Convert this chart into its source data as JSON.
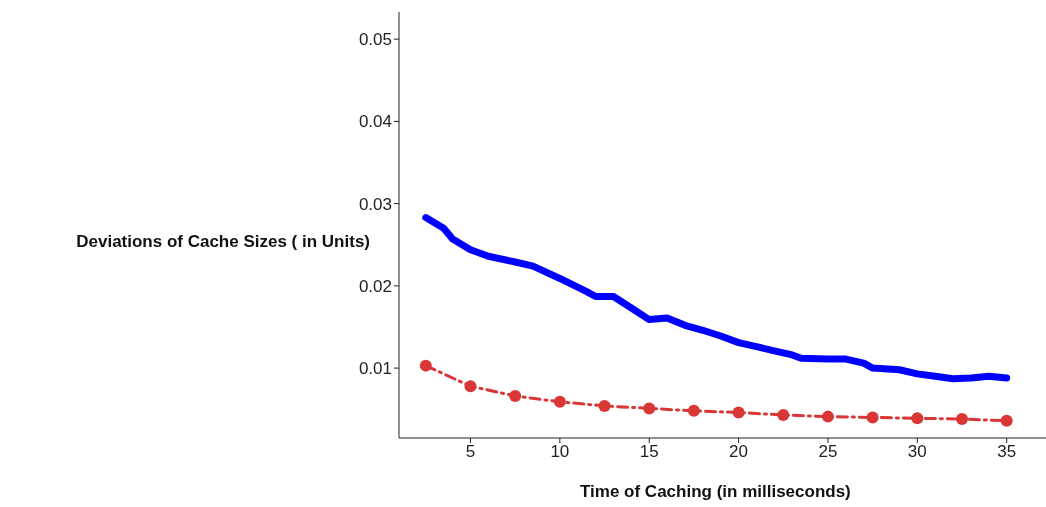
{
  "chart_data": {
    "type": "line",
    "xlabel": "Time of Caching  (in milliseconds)",
    "ylabel": "Deviations of Cache Sizes ( in Units)",
    "xlim": [
      1,
      37.2
    ],
    "xticks": [
      5,
      10,
      15,
      20,
      25,
      30,
      35
    ],
    "ylim": [
      0.0015,
      0.0533
    ],
    "yticks": [
      0.01,
      0.02,
      0.03,
      0.04,
      0.05
    ],
    "series": [
      {
        "color": "#0000ff",
        "marker": "none",
        "line_style": "solid",
        "x": [
          2.5,
          3.5,
          4,
          5,
          6,
          7.5,
          8.5,
          10,
          11.5,
          12,
          13,
          14,
          15,
          16,
          17,
          18,
          19,
          20,
          21,
          22,
          23,
          23.5,
          25,
          26,
          27,
          27.5,
          29,
          30,
          31,
          32,
          33,
          34,
          35
        ],
        "values": [
          0.0283,
          0.027,
          0.0257,
          0.0244,
          0.0236,
          0.0229,
          0.0224,
          0.0209,
          0.0193,
          0.0187,
          0.0187,
          0.0173,
          0.0159,
          0.0161,
          0.0152,
          0.0146,
          0.0139,
          0.0131,
          0.0126,
          0.0121,
          0.0116,
          0.0112,
          0.0111,
          0.0111,
          0.0106,
          0.01,
          0.0098,
          0.0093,
          0.009,
          0.0087,
          0.0088,
          0.009,
          0.0088
        ]
      },
      {
        "color": "#d93636",
        "marker": "circle",
        "line_style": "dashed",
        "x": [
          2.5,
          5,
          7.5,
          10,
          12.5,
          15,
          17.5,
          20,
          22.5,
          25,
          27.5,
          30,
          32.5,
          35
        ],
        "values": [
          0.0103,
          0.0078,
          0.0066,
          0.0059,
          0.0054,
          0.0051,
          0.0048,
          0.0046,
          0.0043,
          0.0041,
          0.004,
          0.0039,
          0.0038,
          0.0036
        ]
      }
    ]
  }
}
